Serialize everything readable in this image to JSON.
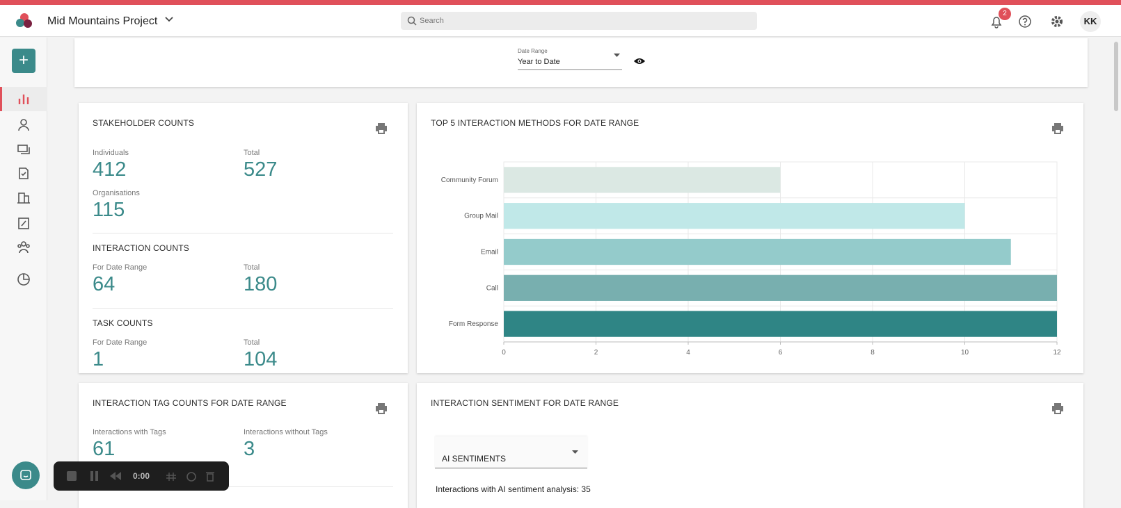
{
  "header": {
    "project": "Mid Mountains Project",
    "search_placeholder": "Search",
    "notifications": 2,
    "avatar": "KK"
  },
  "filter": {
    "label": "Date Range",
    "value": "Year to Date"
  },
  "stakeholder_counts": {
    "title": "STAKEHOLDER COUNTS",
    "individuals_label": "Individuals",
    "individuals": 412,
    "total_label": "Total",
    "total": 527,
    "organisations_label": "Organisations",
    "organisations": 115
  },
  "interaction_counts": {
    "title": "INTERACTION COUNTS",
    "range_label": "For Date Range",
    "range": 64,
    "total_label": "Total",
    "total": 180
  },
  "task_counts": {
    "title": "TASK COUNTS",
    "range_label": "For Date Range",
    "range": 1,
    "total_label": "Total",
    "total": 104
  },
  "tag_counts": {
    "title": "INTERACTION TAG COUNTS FOR DATE RANGE",
    "with_label": "Interactions with Tags",
    "with": 61,
    "without_label": "Interactions without Tags",
    "without": 3
  },
  "chart_data": {
    "type": "bar",
    "orientation": "horizontal",
    "title": "TOP 5 INTERACTION METHODS FOR DATE RANGE",
    "categories": [
      "Community Forum",
      "Group Mail",
      "Email",
      "Call",
      "Form Response"
    ],
    "values": [
      6,
      10,
      11,
      12,
      12
    ],
    "colors": [
      "#dbe8e3",
      "#c0e8e8",
      "#94cbcb",
      "#78afaf",
      "#2f8585"
    ],
    "xlim": [
      0,
      12
    ],
    "xticks": [
      0,
      2,
      4,
      6,
      8,
      10,
      12
    ],
    "grid": true
  },
  "sentiment": {
    "title": "INTERACTION SENTIMENT FOR DATE RANGE",
    "select": "AI SENTIMENTS",
    "summary": "Interactions with AI sentiment analysis: 35"
  },
  "recorder": {
    "time": "0:00"
  }
}
